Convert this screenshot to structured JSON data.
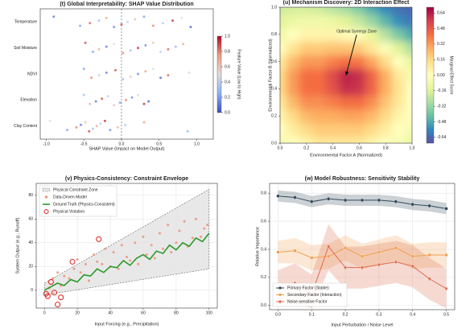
{
  "chart_data": [
    {
      "type": "beeswarm",
      "title": "(t) Global Interpretability: SHAP Value Distribution",
      "xlabel": "SHAP Value (Impact on Model Output)",
      "categories": [
        "Temperature",
        "Soil Moisture",
        "NDVI",
        "Elevation",
        "Clay Content"
      ],
      "xlim": [
        -1.08,
        1.22
      ],
      "xticks": [
        {
          "value": -1,
          "label": "-1.0"
        },
        {
          "value": -0.5,
          "label": "-0.5"
        },
        {
          "value": 0,
          "label": "0.0"
        },
        {
          "value": 0.5,
          "label": "0.5"
        },
        {
          "value": 1,
          "label": "1.0"
        }
      ],
      "vline": 0,
      "shap": [
        [
          -0.9,
          -0.55,
          -0.42,
          -0.3,
          -0.2,
          -0.1,
          0.0,
          0.08,
          0.18,
          0.3,
          0.42,
          0.55,
          0.68,
          0.8,
          0.92
        ],
        [
          -0.48,
          -0.38,
          -0.3,
          -0.2,
          -0.1,
          0.02,
          0.12,
          0.22,
          0.32,
          0.42,
          0.52,
          0.62,
          0.72,
          0.82
        ],
        [
          -0.5,
          -0.4,
          -0.3,
          -0.2,
          -0.08,
          0.02,
          0.12,
          0.22,
          0.32,
          0.42,
          0.52,
          0.62,
          0.9
        ],
        [
          -0.5,
          -0.42,
          -0.34,
          -0.26,
          -0.18,
          -0.1,
          -0.02,
          0.06,
          0.14,
          0.22,
          0.3,
          0.36
        ],
        [
          -0.95,
          -0.72,
          -0.6,
          -0.54,
          -0.48,
          -0.43,
          -0.38,
          -0.33,
          -0.28,
          -0.22,
          -0.15,
          -0.05,
          0.05,
          0.3,
          0.88
        ]
      ],
      "feature": [
        [
          0.1,
          0.2,
          0.85,
          0.3,
          0.7,
          0.15,
          0.9,
          0.4,
          0.6,
          0.2,
          0.8,
          0.35,
          0.95,
          0.5,
          0.05
        ],
        [
          0.9,
          0.2,
          0.7,
          0.1,
          0.5,
          0.8,
          0.3,
          0.95,
          0.15,
          0.6,
          0.4,
          0.85,
          0.25,
          0.7
        ],
        [
          0.2,
          0.8,
          0.4,
          0.1,
          0.9,
          0.3,
          0.6,
          0.15,
          0.75,
          0.5,
          0.05,
          0.85,
          0.45
        ],
        [
          0.3,
          0.7,
          0.1,
          0.9,
          0.4,
          0.6,
          0.2,
          0.8,
          0.15,
          0.55,
          0.95,
          0.05
        ],
        [
          0.5,
          0.2,
          0.8,
          0.1,
          0.6,
          0.9,
          0.3,
          0.7,
          0.4,
          0.95,
          0.15,
          0.65,
          0.35,
          0.75,
          0.25
        ]
      ],
      "colorbar": {
        "label": "Feature Value (Low to High)",
        "lim": [
          0,
          1
        ],
        "colormap": "coolwarm",
        "ticks": [
          {
            "value": 0,
            "label": "0.0"
          },
          0.2,
          0.4,
          0.6,
          0.8,
          {
            "value": 1,
            "label": "1.0"
          }
        ]
      }
    },
    {
      "type": "contour",
      "title": "(u) Mechanism Discovery: 2D Interaction Effect",
      "xlabel": "Environmental Factor A (Normalized)",
      "ylabel": "Environmental Factor B (Normalized)",
      "xlim": [
        0,
        1
      ],
      "ylim": [
        0,
        1
      ],
      "xticks": [
        {
          "value": 0,
          "label": "0.0"
        },
        0.2,
        0.4,
        0.6,
        0.8,
        {
          "value": 1,
          "label": "1.0"
        }
      ],
      "yticks": [
        {
          "value": 0,
          "label": "0.0"
        },
        0.2,
        0.4,
        0.6,
        0.8,
        {
          "value": 1,
          "label": "1.0"
        }
      ],
      "x": [
        0,
        0.1,
        0.2,
        0.3,
        0.4,
        0.5,
        0.6,
        0.7,
        0.8,
        0.9,
        1
      ],
      "y": [
        0,
        0.1,
        0.2,
        0.3,
        0.4,
        0.5,
        0.6,
        0.7,
        0.8,
        0.9,
        1
      ],
      "z": [
        [
          -0.05,
          0.0,
          0.05,
          0.1,
          0.1,
          0.1,
          0.1,
          0.05,
          0.0,
          -0.05,
          -0.1
        ],
        [
          0.0,
          0.08,
          0.15,
          0.2,
          0.2,
          0.2,
          0.2,
          0.15,
          0.08,
          0.0,
          -0.05
        ],
        [
          0.05,
          0.15,
          0.25,
          0.28,
          0.28,
          0.3,
          0.3,
          0.25,
          0.15,
          0.05,
          0.0
        ],
        [
          0.1,
          0.25,
          0.35,
          0.35,
          0.38,
          0.42,
          0.42,
          0.35,
          0.22,
          0.1,
          0.0
        ],
        [
          0.15,
          0.32,
          0.42,
          0.42,
          0.5,
          0.6,
          0.58,
          0.45,
          0.28,
          0.12,
          0.0
        ],
        [
          0.15,
          0.32,
          0.42,
          0.42,
          0.52,
          0.62,
          0.6,
          0.45,
          0.28,
          0.1,
          -0.05
        ],
        [
          0.1,
          0.25,
          0.33,
          0.33,
          0.38,
          0.42,
          0.4,
          0.3,
          0.15,
          0.0,
          -0.12
        ],
        [
          0.0,
          0.12,
          0.2,
          0.2,
          0.22,
          0.22,
          0.2,
          0.1,
          -0.02,
          -0.15,
          -0.28
        ],
        [
          -0.08,
          0.0,
          0.05,
          0.05,
          0.05,
          0.02,
          -0.02,
          -0.12,
          -0.25,
          -0.38,
          -0.48
        ],
        [
          -0.15,
          -0.1,
          -0.08,
          -0.08,
          -0.1,
          -0.15,
          -0.22,
          -0.32,
          -0.45,
          -0.55,
          -0.6
        ],
        [
          -0.2,
          -0.18,
          -0.18,
          -0.2,
          -0.25,
          -0.3,
          -0.38,
          -0.48,
          -0.56,
          -0.62,
          -0.64
        ]
      ],
      "annotation": {
        "text": "Optimal Synergy Zone",
        "xy": [
          0.5,
          0.5
        ],
        "xytext": [
          0.58,
          0.82
        ]
      },
      "colorbar": {
        "label": "Marginal Effect Score",
        "lim": [
          -0.7,
          0.7
        ],
        "colormap": "spectral",
        "ticks": [
          0.64,
          0.48,
          0.32,
          0.16,
          {
            "value": 0,
            "label": "0.00"
          },
          -0.16,
          -0.32,
          -0.48,
          -0.64
        ]
      }
    },
    {
      "type": "scatter",
      "title": "(v) Physics-Consistency: Constraint Envelope",
      "xlabel": "Input Forcing (e.g., Precipitation)",
      "ylabel": "System Output (e.g., Runoff)",
      "xlim": [
        -5,
        105
      ],
      "ylim": [
        -15,
        90
      ],
      "xticks": [
        0,
        20,
        40,
        60,
        80,
        100
      ],
      "yticks": [
        0,
        20,
        40,
        60,
        80
      ],
      "grid": true,
      "envelope": {
        "name": "Physical Constraint Zone",
        "color": "#e4e4e4",
        "x": [
          0,
          100
        ],
        "lower": [
          -4,
          18
        ],
        "upper": [
          6,
          85
        ]
      },
      "series": [
        {
          "name": "Data-Driven Model",
          "kind": "points",
          "color": "#f08a6c",
          "x": [
            3,
            5,
            8,
            10,
            12,
            15,
            18,
            20,
            22,
            25,
            27,
            30,
            32,
            35,
            37,
            40,
            42,
            45,
            47,
            50,
            52,
            55,
            57,
            60,
            62,
            65,
            67,
            70,
            72,
            75,
            77,
            80,
            82,
            85,
            87,
            90,
            92,
            95,
            97,
            99
          ],
          "y": [
            2,
            10,
            15,
            4,
            12,
            10,
            18,
            26,
            15,
            22,
            8,
            30,
            24,
            22,
            35,
            20,
            32,
            18,
            38,
            28,
            25,
            40,
            22,
            45,
            30,
            38,
            27,
            48,
            35,
            55,
            32,
            40,
            50,
            58,
            37,
            44,
            60,
            45,
            52,
            55
          ]
        },
        {
          "name": "Ground Truth (Physics-Consistent)",
          "kind": "line",
          "color": "#2a9a2a",
          "x": [
            0,
            4,
            8,
            12,
            16,
            20,
            24,
            28,
            32,
            36,
            40,
            44,
            48,
            52,
            56,
            60,
            64,
            68,
            72,
            76,
            80,
            84,
            88,
            92,
            96,
            100
          ],
          "y": [
            0,
            3,
            6,
            4,
            9,
            7,
            13,
            12,
            18,
            15,
            20,
            19,
            25,
            21,
            27,
            30,
            26,
            33,
            31,
            38,
            34,
            40,
            37,
            44,
            41,
            48
          ]
        },
        {
          "name": "Physical Violation",
          "kind": "ring",
          "color": "#e0201b",
          "x": [
            1,
            2,
            4,
            6,
            8,
            10,
            17,
            33
          ],
          "y": [
            -3,
            -5,
            7,
            -2,
            -12,
            -6,
            24,
            43
          ]
        }
      ]
    },
    {
      "type": "line",
      "title": "(w) Model Robustness: Sensitivity Stability",
      "xlabel": "Input Perturbation / Noise Level",
      "ylabel": "Relative Importance",
      "xlim": [
        -0.025,
        0.525
      ],
      "ylim": [
        -0.03,
        0.87
      ],
      "grid": true,
      "xticks": [
        {
          "value": 0,
          "label": "0.0"
        },
        0.1,
        0.2,
        0.3,
        0.4,
        0.5
      ],
      "yticks": [
        {
          "value": 0,
          "label": "0.0"
        },
        0.2,
        0.4,
        0.6,
        0.8
      ],
      "x": [
        0,
        0.05,
        0.1,
        0.15,
        0.2,
        0.25,
        0.3,
        0.35,
        0.4,
        0.45,
        0.5
      ],
      "series": [
        {
          "name": "Primary Factor (Stable)",
          "color": "#2f4858",
          "marker": "o",
          "values": [
            0.78,
            0.77,
            0.74,
            0.76,
            0.75,
            0.75,
            0.75,
            0.74,
            0.72,
            0.71,
            0.69
          ],
          "lower": [
            0.74,
            0.73,
            0.7,
            0.72,
            0.71,
            0.71,
            0.71,
            0.7,
            0.68,
            0.67,
            0.65
          ],
          "upper": [
            0.82,
            0.81,
            0.78,
            0.8,
            0.79,
            0.79,
            0.79,
            0.78,
            0.76,
            0.75,
            0.73
          ]
        },
        {
          "name": "Secondary Factor (Interaction)",
          "color": "#f0a050",
          "marker": "s",
          "values": [
            0.38,
            0.39,
            0.34,
            0.35,
            0.41,
            0.35,
            0.38,
            0.41,
            0.35,
            0.36,
            0.36
          ],
          "lower": [
            0.3,
            0.3,
            0.25,
            0.26,
            0.32,
            0.26,
            0.29,
            0.32,
            0.26,
            0.27,
            0.27
          ],
          "upper": [
            0.46,
            0.48,
            0.43,
            0.44,
            0.5,
            0.44,
            0.47,
            0.5,
            0.44,
            0.45,
            0.45
          ]
        },
        {
          "name": "Noise-sensitive Factor",
          "color": "#dd6b4d",
          "marker": "d",
          "values": [
            0.12,
            0.16,
            0.08,
            0.42,
            0.27,
            0.27,
            0.29,
            0.31,
            0.28,
            0.19,
            0.12
          ],
          "lower": [
            0.0,
            0.02,
            -0.02,
            0.25,
            0.12,
            0.12,
            0.14,
            0.16,
            0.13,
            0.04,
            -0.02
          ],
          "upper": [
            0.25,
            0.3,
            0.22,
            0.58,
            0.42,
            0.42,
            0.44,
            0.46,
            0.43,
            0.34,
            0.26
          ]
        }
      ]
    }
  ]
}
